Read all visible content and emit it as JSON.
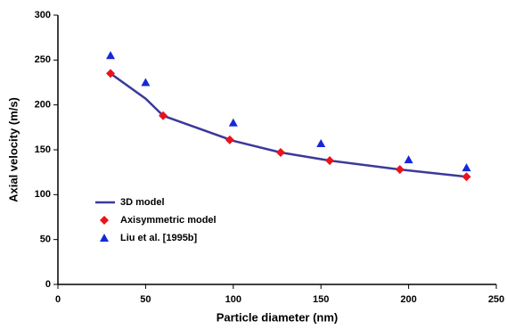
{
  "chart_data": {
    "type": "line",
    "x_label": "Particle diameter (nm)",
    "y_label": "Axial velocity (m/s)",
    "xlim": [
      0,
      250
    ],
    "xticks": [
      0,
      50,
      100,
      150,
      200,
      250
    ],
    "ylim": [
      0,
      300
    ],
    "yticks": [
      0,
      50,
      100,
      150,
      200,
      250,
      300
    ],
    "grid": false,
    "legend": "lower left",
    "series": [
      {
        "name": "3D model",
        "style": "line",
        "color": "#3a3a9a",
        "x": [
          30,
          50,
          60,
          100,
          127,
          155,
          195,
          233
        ],
        "values": [
          235,
          207,
          188,
          160,
          147,
          138,
          128,
          120
        ]
      },
      {
        "name": "Axisymmetric model",
        "style": "marker",
        "marker": "diamond",
        "color": "#e8141c",
        "x": [
          30,
          60,
          98,
          127,
          155,
          195,
          233
        ],
        "values": [
          235,
          188,
          161,
          147,
          138,
          128,
          120
        ]
      },
      {
        "name": "Liu et al. [1995b]",
        "style": "marker",
        "marker": "triangle",
        "color": "#1428d8",
        "x": [
          30,
          50,
          100,
          150,
          200,
          233
        ],
        "values": [
          255,
          225,
          180,
          157,
          139,
          130
        ]
      }
    ]
  }
}
